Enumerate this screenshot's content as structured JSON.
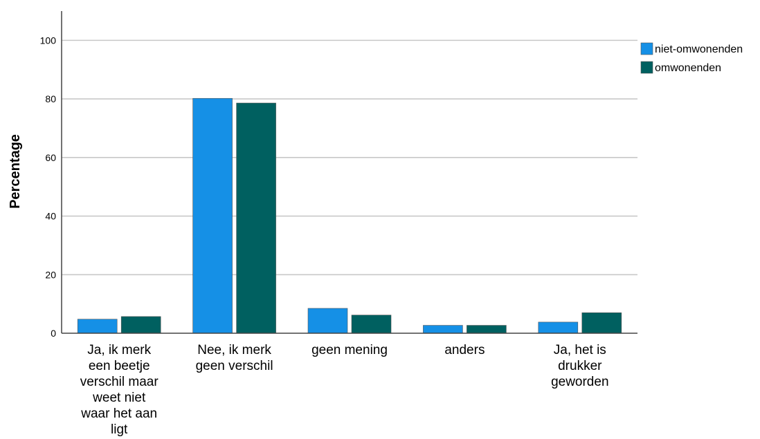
{
  "chart_data": {
    "type": "bar",
    "title": "",
    "xlabel": "",
    "ylabel": "Percentage",
    "ylim": [
      0,
      110
    ],
    "yticks": [
      0,
      20,
      40,
      60,
      80,
      100
    ],
    "grid": true,
    "legend_position": "top-right",
    "categories": [
      [
        "Ja, ik merk",
        "een beetje",
        "verschil maar",
        "weet niet",
        "waar het aan",
        "ligt"
      ],
      [
        "Nee, ik merk",
        "geen verschil"
      ],
      [
        "geen mening"
      ],
      [
        "anders"
      ],
      [
        "Ja, het is",
        "drukker",
        "geworden"
      ]
    ],
    "series": [
      {
        "name": "niet-omwonenden",
        "color": "#1590e6",
        "values": [
          4.8,
          80.2,
          8.5,
          2.7,
          3.8
        ]
      },
      {
        "name": "omwonenden",
        "color": "#006060",
        "values": [
          5.7,
          78.6,
          6.2,
          2.7,
          7.0
        ]
      }
    ]
  }
}
